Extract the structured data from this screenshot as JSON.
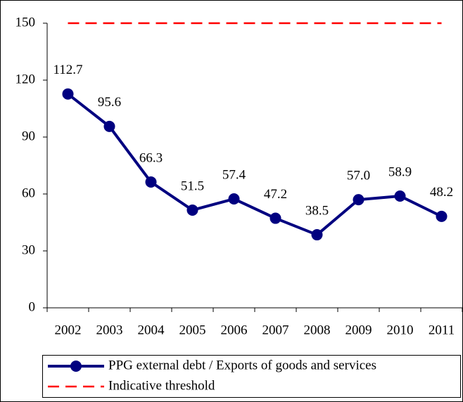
{
  "chart_data": {
    "type": "line",
    "categories": [
      "2002",
      "2003",
      "2004",
      "2005",
      "2006",
      "2007",
      "2008",
      "2009",
      "2010",
      "2011"
    ],
    "series": [
      {
        "name": "PPG external debt / Exports of goods and services",
        "color": "#000080",
        "markers": true,
        "values": [
          112.7,
          95.6,
          66.3,
          51.5,
          57.4,
          47.2,
          38.5,
          57.0,
          58.9,
          48.2
        ],
        "value_labels": [
          "112.7",
          "95.6",
          "66.3",
          "51.5",
          "57.4",
          "47.2",
          "38.5",
          "57.0",
          "58.9",
          "48.2"
        ]
      },
      {
        "name": "Indicative threshold",
        "color": "#ff0000",
        "dashed": true,
        "values": [
          150,
          150,
          150,
          150,
          150,
          150,
          150,
          150,
          150,
          150
        ]
      }
    ],
    "ylim": [
      0,
      150
    ],
    "yticks": [
      0,
      30,
      60,
      90,
      120,
      150
    ],
    "legend": "bottom"
  }
}
